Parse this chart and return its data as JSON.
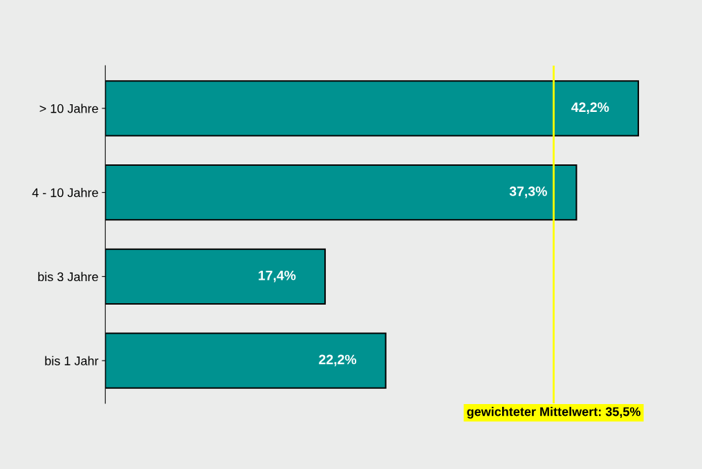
{
  "chart_data": {
    "type": "bar",
    "orientation": "horizontal",
    "categories": [
      "> 10 Jahre",
      "4 - 10 Jahre",
      "bis 3 Jahre",
      "bis 1 Jahr"
    ],
    "values": [
      42.2,
      37.3,
      17.4,
      22.2
    ],
    "value_labels": [
      "42,2%",
      "37,3%",
      "17,4%",
      "22,2%"
    ],
    "color": "#009290",
    "tick_labels": "y",
    "ref_lines": [
      {
        "axis": "x",
        "value": 35.5,
        "label": "gewichteter Mittelwert: 35,5%",
        "color": "#ffff00"
      }
    ],
    "grid": false,
    "legend": false
  }
}
